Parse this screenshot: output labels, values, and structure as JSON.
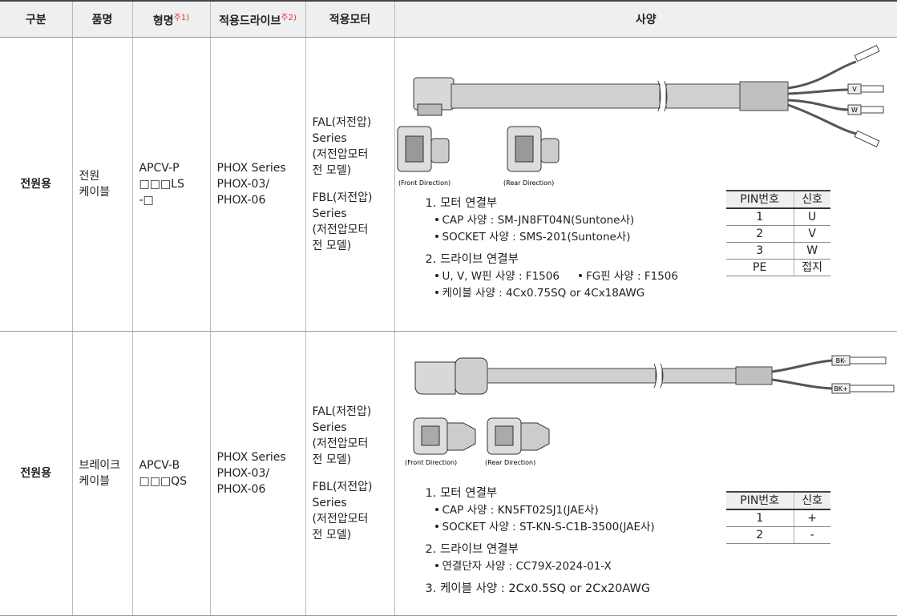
{
  "header": [
    {
      "text": "구분"
    },
    {
      "text": "품명"
    },
    {
      "text": "형명",
      "note": "주1)"
    },
    {
      "text": "적용드라이브",
      "note": "주2)"
    },
    {
      "text": "적용모터"
    },
    {
      "text": "사양"
    }
  ],
  "rows": [
    {
      "category": "전원용",
      "name": [
        "전원",
        "케이블"
      ],
      "model": [
        "APCV-P",
        "□□□LS",
        "-□"
      ],
      "drive": [
        "PHOX Series",
        "PHOX-03/",
        "PHOX-06"
      ],
      "motor": [
        [
          "FAL(저전압)",
          "Series",
          "(저전압모터",
          "전 모델)"
        ],
        [
          "FBL(저전압)",
          "Series",
          "(저전압모터",
          "전 모델)"
        ]
      ],
      "spec": {
        "wire_labels": [
          "V",
          "W"
        ],
        "connector_labels": [
          "(Front Direction)",
          "(Rear Direction)"
        ],
        "sections": [
          {
            "title": "1. 모터 연결부",
            "items": [
              [
                "CAP 사양 : SM-JN8FT04N(Suntone사)"
              ],
              [
                "SOCKET 사양 : SMS-201(Suntone사)"
              ]
            ]
          },
          {
            "title": "2. 드라이브 연결부",
            "items": [
              [
                "U, V, W핀 사양 : F1506",
                "FG핀 사양 : F1506"
              ],
              [
                "케이블 사양 : 4Cx0.75SQ or 4Cx18AWG"
              ]
            ]
          }
        ],
        "pin_table": {
          "header": [
            "PIN번호",
            "신호"
          ],
          "rows": [
            [
              "1",
              "U"
            ],
            [
              "2",
              "V"
            ],
            [
              "3",
              "W"
            ],
            [
              "PE",
              "접지"
            ]
          ]
        }
      }
    },
    {
      "category": "전원용",
      "name": [
        "브레이크",
        "케이블"
      ],
      "model": [
        "APCV-B",
        "□□□QS"
      ],
      "drive": [
        "PHOX Series",
        "PHOX-03/",
        "PHOX-06"
      ],
      "motor": [
        [
          "FAL(저전압)",
          "Series",
          "(저전압모터",
          "전 모델)"
        ],
        [
          "FBL(저전압)",
          "Series",
          "(저전압모터",
          "전 모델)"
        ]
      ],
      "spec": {
        "wire_labels": [
          "BK-",
          "BK+"
        ],
        "connector_labels": [
          "(Front Direction)",
          "(Rear Direction)"
        ],
        "sections": [
          {
            "title": "1. 모터 연결부",
            "items": [
              [
                "CAP 사양 : KN5FT02SJ1(JAE사)"
              ],
              [
                "SOCKET 사양 : ST-KN-S-C1B-3500(JAE사)"
              ]
            ]
          },
          {
            "title": "2. 드라이브 연결부",
            "items": [
              [
                "연결단자 사양 : CC79X-2024-01-X"
              ]
            ]
          },
          {
            "title": "3. 케이블 사양 : 2Cx0.5SQ or 2Cx20AWG",
            "items": []
          }
        ],
        "pin_table": {
          "header": [
            "PIN번호",
            "신호"
          ],
          "rows": [
            [
              "1",
              "+"
            ],
            [
              "2",
              "-"
            ]
          ]
        }
      }
    }
  ]
}
